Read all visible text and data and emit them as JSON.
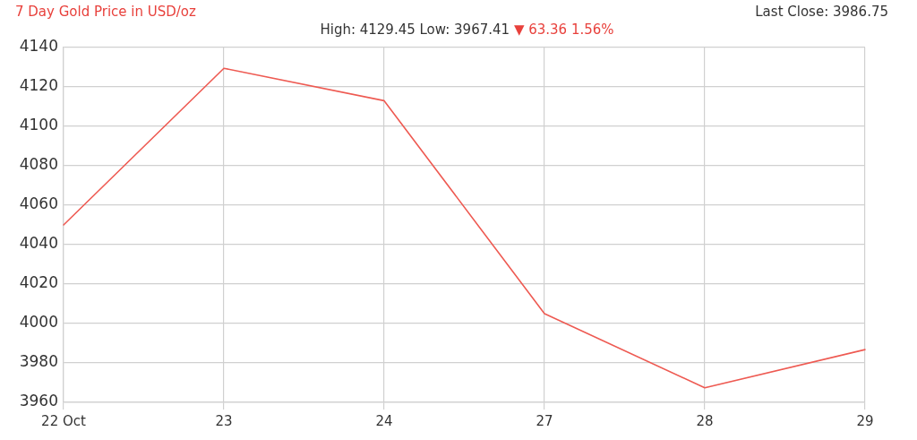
{
  "chart_data": {
    "type": "line",
    "title": "7 Day Gold Price in USD/oz",
    "subtitle": "High: 4129.45 Low: 3967.41",
    "annotations": [
      "▼ 63.36 1.56%",
      "Last Close: 3986.75"
    ],
    "categories": [
      "22 Oct",
      "23",
      "24",
      "27",
      "28",
      "29"
    ],
    "series": [
      {
        "color": "#ee5a52",
        "values": [
          4050,
          4129.45,
          4113,
          4005,
          3967.41,
          3986.75
        ]
      }
    ],
    "ylim": [
      3960,
      4140
    ],
    "yticks": [
      3960,
      3980,
      4000,
      4020,
      4040,
      4060,
      4080,
      4100,
      4120,
      4140
    ],
    "grid": true,
    "line_style": "solid"
  }
}
